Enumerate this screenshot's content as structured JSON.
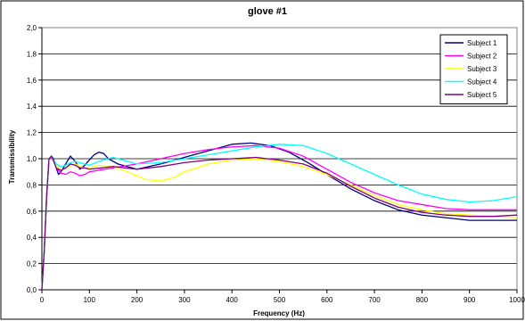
{
  "chart_data": {
    "type": "line",
    "title": "glove #1",
    "xlabel": "Frequency (Hz)",
    "ylabel": "Transmissibility",
    "xlim": [
      0,
      1000
    ],
    "ylim": [
      0,
      2.0
    ],
    "x_ticks": [
      "0",
      "100",
      "200",
      "300",
      "400",
      "500",
      "600",
      "700",
      "800",
      "900",
      "1000"
    ],
    "y_ticks": [
      "0,0",
      "0,2",
      "0,4",
      "0,6",
      "0,8",
      "1,0",
      "1,2",
      "1,4",
      "1,6",
      "1,8",
      "2,0"
    ],
    "grid": "horizontal",
    "legend_position": "top-right",
    "series": [
      {
        "name": "Subject 1",
        "color": "#000080",
        "points": [
          [
            0,
            0
          ],
          [
            5,
            0.3
          ],
          [
            10,
            0.7
          ],
          [
            15,
            1.0
          ],
          [
            20,
            1.02
          ],
          [
            25,
            1.0
          ],
          [
            30,
            0.93
          ],
          [
            35,
            0.88
          ],
          [
            40,
            0.9
          ],
          [
            45,
            0.93
          ],
          [
            50,
            0.96
          ],
          [
            55,
            0.99
          ],
          [
            60,
            1.02
          ],
          [
            65,
            1.0
          ],
          [
            70,
            0.98
          ],
          [
            80,
            0.92
          ],
          [
            90,
            0.95
          ],
          [
            100,
            0.99
          ],
          [
            110,
            1.03
          ],
          [
            120,
            1.05
          ],
          [
            130,
            1.04
          ],
          [
            140,
            1.0
          ],
          [
            150,
            0.98
          ],
          [
            160,
            0.96
          ],
          [
            180,
            0.94
          ],
          [
            200,
            0.92
          ],
          [
            250,
            0.96
          ],
          [
            300,
            1.01
          ],
          [
            350,
            1.06
          ],
          [
            400,
            1.11
          ],
          [
            440,
            1.12
          ],
          [
            480,
            1.1
          ],
          [
            520,
            1.05
          ],
          [
            560,
            0.97
          ],
          [
            600,
            0.88
          ],
          [
            650,
            0.77
          ],
          [
            700,
            0.68
          ],
          [
            750,
            0.61
          ],
          [
            800,
            0.57
          ],
          [
            850,
            0.55
          ],
          [
            900,
            0.53
          ],
          [
            950,
            0.53
          ],
          [
            1000,
            0.53
          ]
        ]
      },
      {
        "name": "Subject 2",
        "color": "#ff00ff",
        "points": [
          [
            0,
            0
          ],
          [
            5,
            0.3
          ],
          [
            10,
            0.72
          ],
          [
            15,
            1.0
          ],
          [
            20,
            1.02
          ],
          [
            25,
            0.98
          ],
          [
            30,
            0.93
          ],
          [
            40,
            0.89
          ],
          [
            50,
            0.88
          ],
          [
            60,
            0.9
          ],
          [
            70,
            0.89
          ],
          [
            80,
            0.87
          ],
          [
            90,
            0.88
          ],
          [
            100,
            0.9
          ],
          [
            150,
            0.93
          ],
          [
            200,
            0.96
          ],
          [
            250,
            1.0
          ],
          [
            300,
            1.04
          ],
          [
            350,
            1.07
          ],
          [
            400,
            1.09
          ],
          [
            450,
            1.1
          ],
          [
            500,
            1.08
          ],
          [
            550,
            1.02
          ],
          [
            600,
            0.92
          ],
          [
            650,
            0.82
          ],
          [
            700,
            0.74
          ],
          [
            750,
            0.68
          ],
          [
            800,
            0.65
          ],
          [
            850,
            0.62
          ],
          [
            900,
            0.61
          ],
          [
            950,
            0.61
          ],
          [
            1000,
            0.61
          ]
        ]
      },
      {
        "name": "Subject 3",
        "color": "#ffff00",
        "points": [
          [
            0,
            0
          ],
          [
            5,
            0.3
          ],
          [
            10,
            0.72
          ],
          [
            15,
            1.0
          ],
          [
            20,
            1.02
          ],
          [
            25,
            0.99
          ],
          [
            30,
            0.95
          ],
          [
            40,
            0.92
          ],
          [
            50,
            0.92
          ],
          [
            60,
            0.95
          ],
          [
            70,
            0.96
          ],
          [
            80,
            0.94
          ],
          [
            90,
            0.93
          ],
          [
            100,
            0.93
          ],
          [
            120,
            0.95
          ],
          [
            150,
            0.94
          ],
          [
            180,
            0.9
          ],
          [
            200,
            0.87
          ],
          [
            220,
            0.84
          ],
          [
            250,
            0.83
          ],
          [
            280,
            0.86
          ],
          [
            300,
            0.9
          ],
          [
            350,
            0.96
          ],
          [
            400,
            0.99
          ],
          [
            450,
            1.0
          ],
          [
            500,
            0.98
          ],
          [
            550,
            0.94
          ],
          [
            600,
            0.88
          ],
          [
            650,
            0.8
          ],
          [
            700,
            0.72
          ],
          [
            750,
            0.65
          ],
          [
            800,
            0.61
          ],
          [
            850,
            0.58
          ],
          [
            900,
            0.57
          ],
          [
            950,
            0.56
          ],
          [
            1000,
            0.55
          ]
        ]
      },
      {
        "name": "Subject 4",
        "color": "#00ffff",
        "points": [
          [
            0,
            0
          ],
          [
            5,
            0.3
          ],
          [
            10,
            0.72
          ],
          [
            15,
            1.0
          ],
          [
            20,
            1.02
          ],
          [
            25,
            0.99
          ],
          [
            30,
            0.96
          ],
          [
            40,
            0.94
          ],
          [
            50,
            0.95
          ],
          [
            60,
            0.97
          ],
          [
            70,
            0.98
          ],
          [
            80,
            0.97
          ],
          [
            90,
            0.96
          ],
          [
            100,
            0.95
          ],
          [
            120,
            0.98
          ],
          [
            150,
            1.01
          ],
          [
            180,
            0.98
          ],
          [
            200,
            0.96
          ],
          [
            250,
            0.97
          ],
          [
            300,
            1.0
          ],
          [
            350,
            1.03
          ],
          [
            400,
            1.06
          ],
          [
            450,
            1.09
          ],
          [
            500,
            1.11
          ],
          [
            550,
            1.1
          ],
          [
            600,
            1.04
          ],
          [
            650,
            0.96
          ],
          [
            700,
            0.88
          ],
          [
            750,
            0.8
          ],
          [
            800,
            0.73
          ],
          [
            850,
            0.69
          ],
          [
            900,
            0.67
          ],
          [
            950,
            0.68
          ],
          [
            1000,
            0.71
          ]
        ]
      },
      {
        "name": "Subject 5",
        "color": "#800080",
        "points": [
          [
            0,
            0
          ],
          [
            5,
            0.3
          ],
          [
            10,
            0.72
          ],
          [
            15,
            1.0
          ],
          [
            20,
            1.02
          ],
          [
            25,
            0.98
          ],
          [
            30,
            0.93
          ],
          [
            40,
            0.91
          ],
          [
            50,
            0.93
          ],
          [
            60,
            0.96
          ],
          [
            70,
            0.95
          ],
          [
            80,
            0.93
          ],
          [
            90,
            0.93
          ],
          [
            100,
            0.92
          ],
          [
            150,
            0.94
          ],
          [
            200,
            0.92
          ],
          [
            250,
            0.94
          ],
          [
            300,
            0.97
          ],
          [
            350,
            0.99
          ],
          [
            400,
            1.0
          ],
          [
            450,
            1.01
          ],
          [
            500,
            0.99
          ],
          [
            550,
            0.96
          ],
          [
            600,
            0.89
          ],
          [
            650,
            0.79
          ],
          [
            700,
            0.7
          ],
          [
            750,
            0.63
          ],
          [
            800,
            0.59
          ],
          [
            850,
            0.57
          ],
          [
            900,
            0.56
          ],
          [
            950,
            0.56
          ],
          [
            1000,
            0.57
          ]
        ]
      }
    ]
  }
}
